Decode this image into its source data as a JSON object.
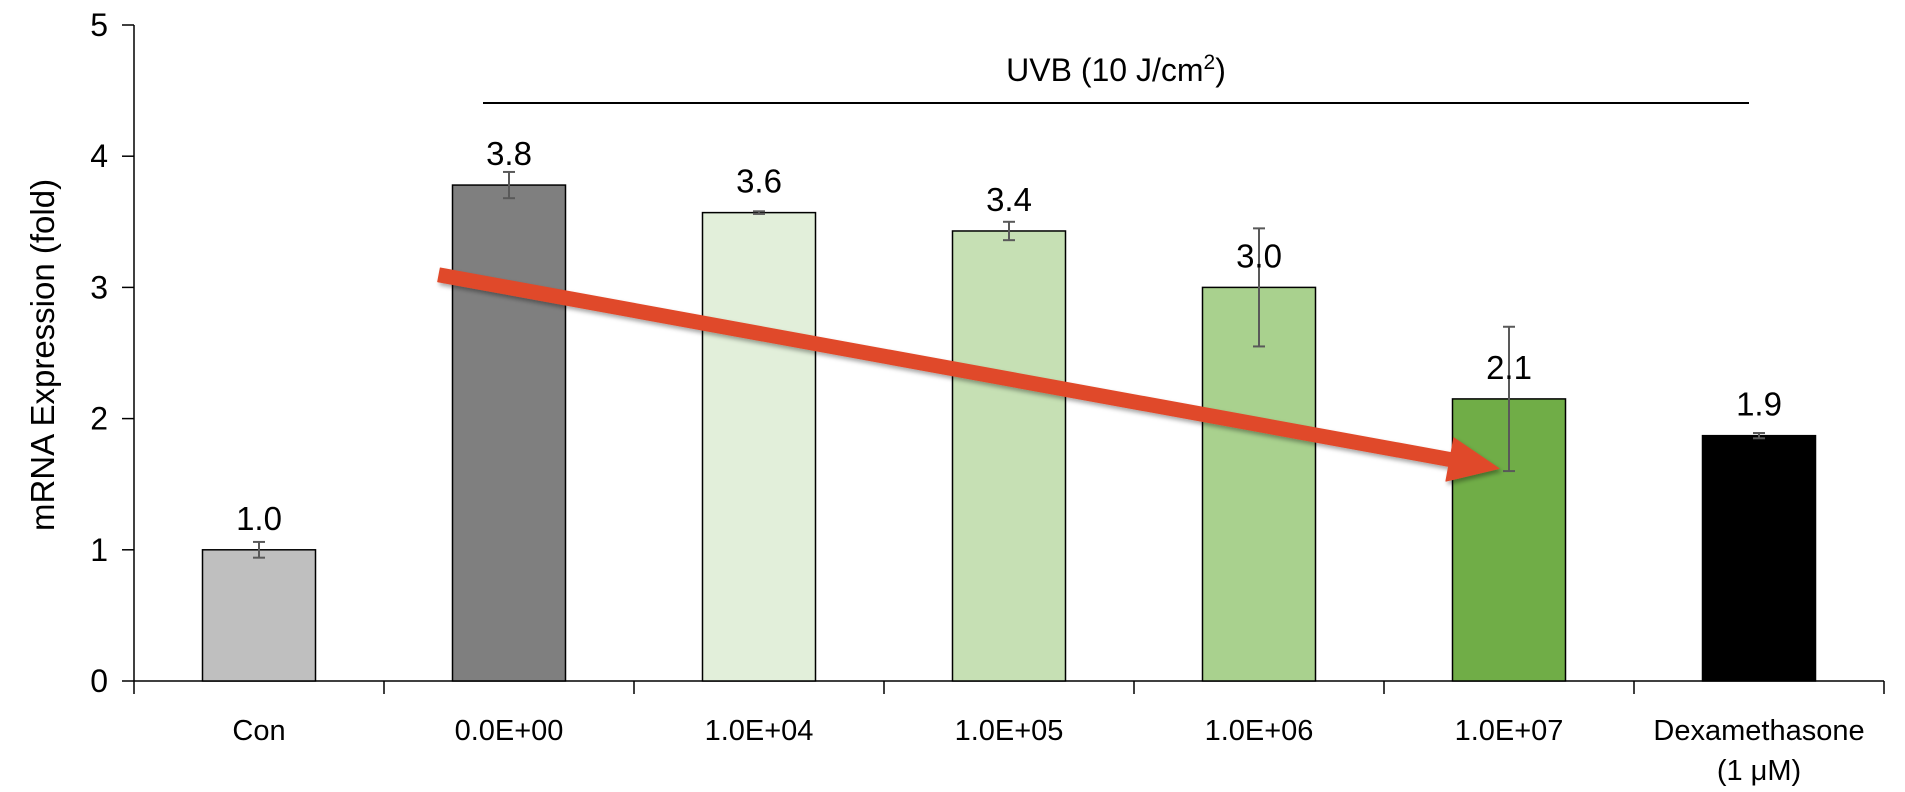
{
  "chart_data": {
    "type": "bar",
    "title": "",
    "xlabel": "",
    "ylabel": "mRNA Expression (fold)",
    "ylim": [
      0,
      5
    ],
    "yticks": [
      0,
      1,
      2,
      3,
      4,
      5
    ],
    "grid": false,
    "categories": [
      [
        "Con"
      ],
      [
        "0.0E+00"
      ],
      [
        "1.0E+04"
      ],
      [
        "1.0E+05"
      ],
      [
        "1.0E+06"
      ],
      [
        "1.0E+07"
      ],
      [
        "Dexamethasone",
        "(1 μM)"
      ]
    ],
    "values": [
      1.0,
      3.78,
      3.57,
      3.43,
      3.0,
      2.15,
      1.87
    ],
    "error": [
      0.06,
      0.1,
      0.01,
      0.07,
      0.45,
      0.55,
      0.02
    ],
    "data_labels": [
      "1.0",
      "3.8",
      "3.6",
      "3.4",
      "3.0",
      "2.1",
      "1.9"
    ],
    "colors": [
      "#bfbfbf",
      "#7f7f7f",
      "#e2efda",
      "#c6e0b4",
      "#a9d18e",
      "#70ad47",
      "#000000"
    ],
    "annotations": {
      "bracket": {
        "label": "UVB (10 J/cm",
        "superscript": "2",
        "label_end": ")",
        "from_category": 1,
        "to_category": 6
      },
      "trend_arrow": {
        "color": "#e04a2a",
        "from": {
          "category": 1,
          "value": 3.05
        },
        "to": {
          "category": 5,
          "value": 1.62
        }
      }
    }
  }
}
